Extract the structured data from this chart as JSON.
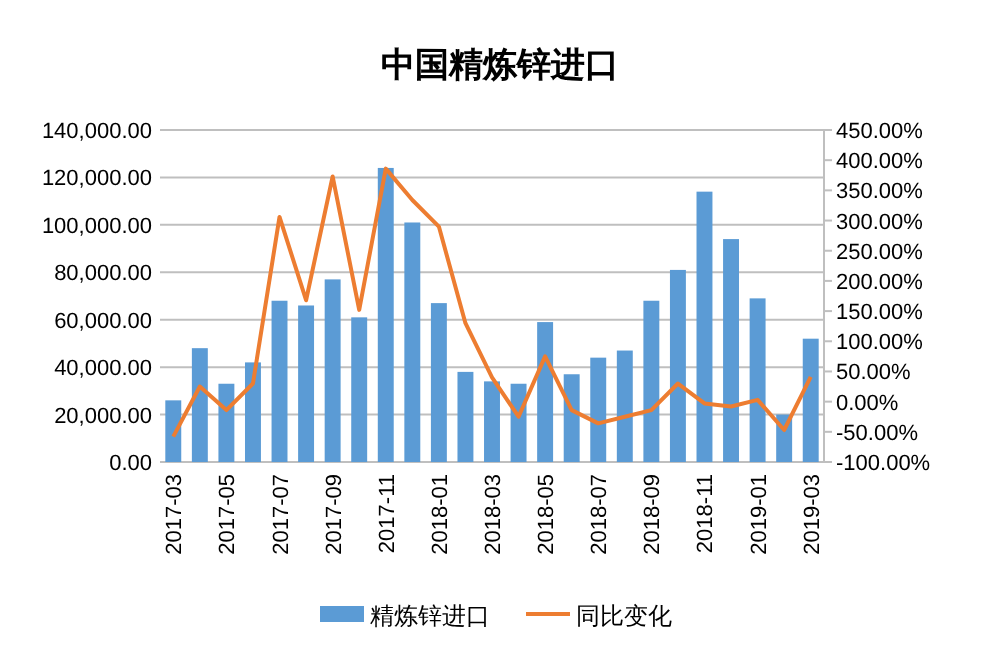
{
  "chart_data": {
    "type": "bar",
    "title": "中国精炼锌进口",
    "categories": [
      "2017-03",
      null,
      "2017-05",
      null,
      "2017-07",
      null,
      "2017-09",
      null,
      "2017-11",
      null,
      "2018-01",
      null,
      "2018-03",
      null,
      "2018-05",
      null,
      "2018-07",
      null,
      "2018-09",
      null,
      "2018-11",
      null,
      "2019-01",
      null,
      "2019-03"
    ],
    "series": [
      {
        "name": "精炼锌进口",
        "color": "#5b9bd5",
        "values": [
          26000,
          48000,
          33000,
          42000,
          68000,
          66000,
          77000,
          61000,
          124000,
          101000,
          67000,
          38000,
          34000,
          33000,
          59000,
          37000,
          44000,
          47000,
          68000,
          81000,
          114000,
          94000,
          69000,
          20000,
          52000
        ]
      },
      {
        "name": "同比变化",
        "type": "line",
        "axis": "y2",
        "color": "#ed7d31",
        "values": [
          -58,
          25,
          -14,
          30,
          306,
          168,
          373,
          152,
          386,
          334,
          290,
          130,
          40,
          -25,
          75,
          -14,
          -36,
          -25,
          -14,
          30,
          -3,
          -8,
          3,
          -47,
          41
        ]
      }
    ],
    "ylim": [
      0,
      140000
    ],
    "yticks": [
      {
        "value": 0,
        "label": "0.00"
      },
      {
        "value": 20000,
        "label": "20,000.00"
      },
      {
        "value": 40000,
        "label": "40,000.00"
      },
      {
        "value": 60000,
        "label": "60,000.00"
      },
      {
        "value": 80000,
        "label": "80,000.00"
      },
      {
        "value": 100000,
        "label": "100,000.00"
      },
      {
        "value": 120000,
        "label": "120,000.00"
      },
      {
        "value": 140000,
        "label": "140,000.00"
      }
    ],
    "y2lim": [
      -100,
      450
    ],
    "y2ticks": [
      {
        "value": -100,
        "label": "-100.00%"
      },
      {
        "value": -50,
        "label": "-50.00%"
      },
      {
        "value": 0,
        "label": "0.00%"
      },
      {
        "value": 50,
        "label": "50.00%"
      },
      {
        "value": 100,
        "label": "100.00%"
      },
      {
        "value": 150,
        "label": "150.00%"
      },
      {
        "value": 200,
        "label": "200.00%"
      },
      {
        "value": 250,
        "label": "250.00%"
      },
      {
        "value": 300,
        "label": "300.00%"
      },
      {
        "value": 350,
        "label": "350.00%"
      },
      {
        "value": 400,
        "label": "400.00%"
      },
      {
        "value": 450,
        "label": "450.00%"
      }
    ],
    "grid": "y",
    "legend": "bottom"
  }
}
